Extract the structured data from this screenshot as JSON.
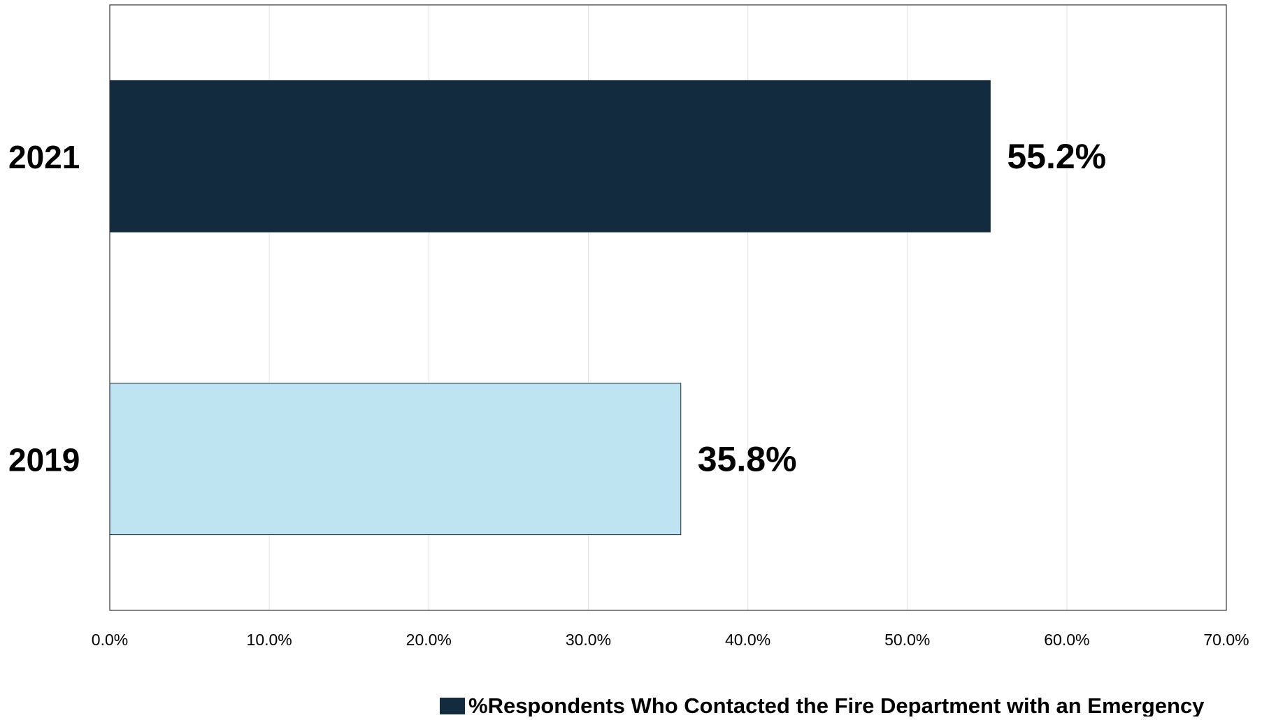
{
  "chart_data": {
    "type": "bar",
    "orientation": "horizontal",
    "categories": [
      "2021",
      "2019"
    ],
    "series": [
      {
        "name": "%Respondents Who Contacted the Fire Department with an Emergency",
        "values": [
          55.2,
          35.8
        ],
        "data_labels": [
          "55.2%",
          "35.8%"
        ],
        "colors": [
          "#132b3f",
          "#bee4f2"
        ]
      }
    ],
    "xlim": [
      0,
      70
    ],
    "xticks": [
      0,
      10,
      20,
      30,
      40,
      50,
      60,
      70
    ],
    "xtick_labels": [
      "0.0%",
      "10.0%",
      "20.0%",
      "30.0%",
      "40.0%",
      "50.0%",
      "60.0%",
      "70.0%"
    ],
    "legend_position": "bottom-right",
    "legend_color": "#132b3f",
    "grid": true,
    "title": "",
    "xlabel": "",
    "ylabel": ""
  }
}
